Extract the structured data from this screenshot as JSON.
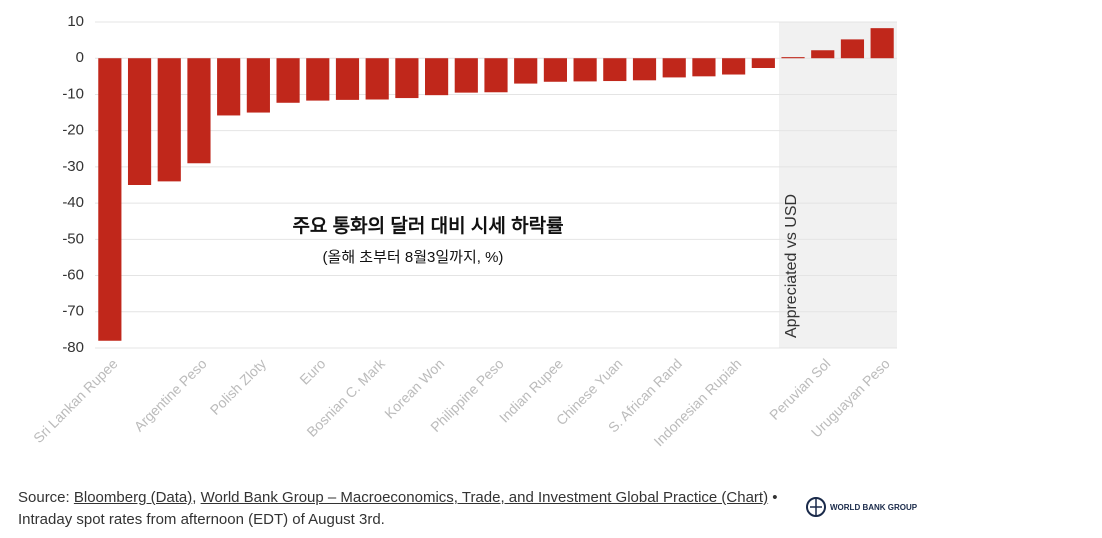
{
  "chart_data": {
    "type": "bar",
    "title": "주요 통화의 달러 대비 시세 하락률",
    "subtitle": "(올해 초부터 8월3일까지, %)",
    "annotation": "Appreciated vs USD",
    "categories": [
      "Sri Lankan Rupee",
      null,
      null,
      "Argentine Peso",
      null,
      "Polish Zloty",
      null,
      "Euro",
      null,
      "Bosnian C. Mark",
      null,
      "Korean Won",
      null,
      "Philippine Peso",
      null,
      "Indian Rupee",
      null,
      "Chinese Yuan",
      null,
      "S. African Rand",
      null,
      "Indonesian Rupiah",
      null,
      null,
      "Peruvian Sol",
      null,
      "Uruguayan Peso"
    ],
    "values": [
      -78,
      -35,
      -34,
      -29,
      -15.8,
      -15,
      -12.3,
      -11.7,
      -11.5,
      -11.4,
      -11,
      -10.2,
      -9.5,
      -9.4,
      -7,
      -6.5,
      -6.4,
      -6.3,
      -6.1,
      -5.3,
      -5,
      -4.5,
      -2.7,
      0.3,
      2.2,
      5.2,
      8.3
    ],
    "color": "#c0271b",
    "ylim": [
      -80,
      10
    ],
    "yticks": [
      10,
      0,
      -10,
      -20,
      -30,
      -40,
      -50,
      -60,
      -70,
      -80
    ],
    "grid": true
  },
  "footer": {
    "prefix": "Source:",
    "links": [
      "Bloomberg (Data)",
      "World Bank Group – Macroeconomics, Trade, and Investment Global Practice (Chart)"
    ],
    "separator": ",",
    "note": "• Intraday spot rates from afternoon (EDT) of August 3rd.",
    "logo": "WORLD BANK GROUP"
  }
}
